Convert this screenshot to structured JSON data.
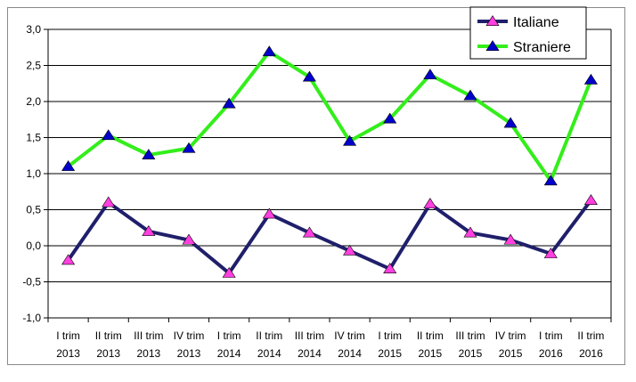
{
  "chart_data": {
    "type": "line",
    "categories": [
      [
        "I trim",
        "2013"
      ],
      [
        "II trim",
        "2013"
      ],
      [
        "III trim",
        "2013"
      ],
      [
        "IV trim",
        "2013"
      ],
      [
        "I trim",
        "2014"
      ],
      [
        "II trim",
        "2014"
      ],
      [
        "III trim",
        "2014"
      ],
      [
        "IV trim",
        "2014"
      ],
      [
        "I trim",
        "2015"
      ],
      [
        "II trim",
        "2015"
      ],
      [
        "III trim",
        "2015"
      ],
      [
        "IV trim",
        "2015"
      ],
      [
        "I trim",
        "2016"
      ],
      [
        "II trim",
        "2016"
      ]
    ],
    "y_ticks": [
      "3,0",
      "2,5",
      "2,0",
      "1,5",
      "1,0",
      "0,5",
      "0,0",
      "-0,5",
      "-1,0"
    ],
    "ylim": [
      -1.0,
      3.0
    ],
    "grid": "horizontal",
    "legend_position": "top-right",
    "series": [
      {
        "name": "Italiane",
        "line_color": "#1f1f6b",
        "marker_color": "#ff3fe0",
        "values": [
          -0.2,
          0.6,
          0.2,
          0.08,
          -0.38,
          0.44,
          0.18,
          -0.07,
          -0.32,
          0.58,
          0.18,
          0.08,
          -0.11,
          0.63
        ]
      },
      {
        "name": "Straniere",
        "line_color": "#33ee1a",
        "marker_color": "#0000cc",
        "values": [
          1.1,
          1.53,
          1.26,
          1.35,
          1.97,
          2.69,
          2.34,
          1.45,
          1.76,
          2.37,
          2.08,
          1.7,
          0.9,
          2.3
        ]
      }
    ]
  }
}
